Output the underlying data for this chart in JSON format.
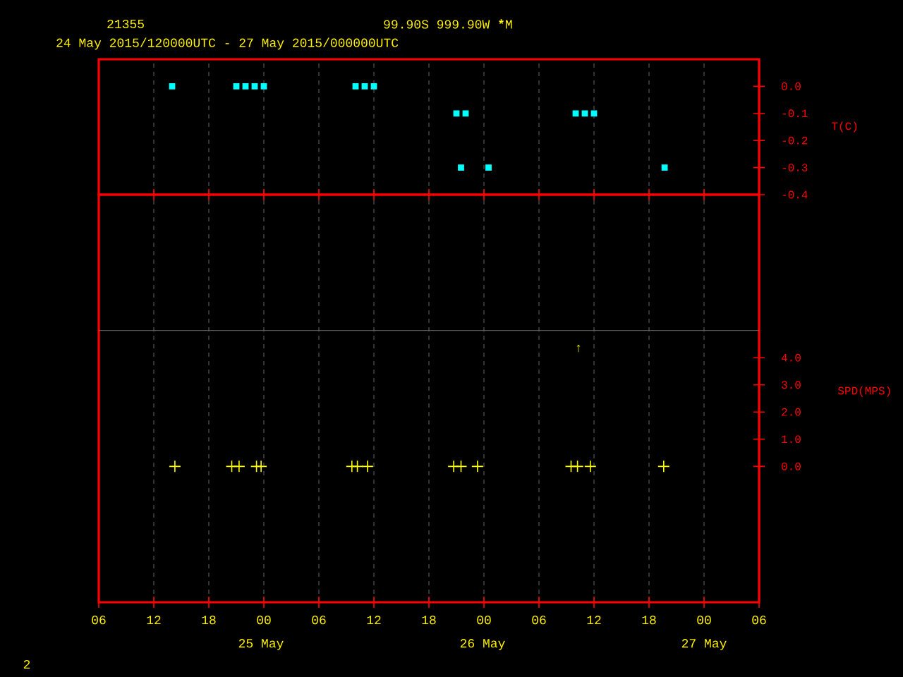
{
  "chart_data": [
    {
      "type": "scatter",
      "title": "21355",
      "subtitle": "24 May 2015/120000UTC - 27 May 2015/000000UTC",
      "annotations": [
        "99.90S  999.90W *****M"
      ],
      "ylabel": "T(C)",
      "marker": "square",
      "grid": "x",
      "tick_labels": "y",
      "xlim": [
        6,
        78
      ],
      "xticks": [
        6,
        12,
        18,
        24,
        30,
        36,
        42,
        48,
        54,
        60,
        66,
        72,
        78
      ],
      "ylim": [
        -0.4,
        0.1
      ],
      "yticks": [
        {
          "value": 0,
          "label": "0.0"
        },
        {
          "value": -0.1,
          "label": "-0.1"
        },
        {
          "value": -0.2,
          "label": "-0.2"
        },
        {
          "value": -0.3,
          "label": "-0.3"
        },
        {
          "value": -0.4,
          "label": "-0.4"
        }
      ],
      "series": [
        {
          "color": "#00ffff",
          "x": [
            14,
            21,
            22,
            23,
            24,
            34,
            35,
            36,
            45,
            46,
            58,
            59,
            60,
            45.5,
            48.5,
            67.7
          ],
          "values": [
            0,
            0,
            0,
            0,
            0,
            0,
            0,
            0,
            -0.1,
            -0.1,
            -0.1,
            -0.1,
            -0.1,
            -0.3,
            -0.3,
            -0.3
          ]
        }
      ]
    },
    {
      "type": "scatter",
      "ylabel": "SPD(MPS)",
      "marker": "cross",
      "grid": "x",
      "annotations": [
        "25 May",
        "26 May",
        "27 May",
        "↑",
        "2"
      ],
      "xlim": [
        6,
        78
      ],
      "xticks": [
        {
          "value": 6,
          "label": "06"
        },
        {
          "value": 12,
          "label": "12"
        },
        {
          "value": 18,
          "label": "18"
        },
        {
          "value": 24,
          "label": "00"
        },
        {
          "value": 30,
          "label": "06"
        },
        {
          "value": 36,
          "label": "12"
        },
        {
          "value": 42,
          "label": "18"
        },
        {
          "value": 48,
          "label": "00"
        },
        {
          "value": 54,
          "label": "06"
        },
        {
          "value": 60,
          "label": "12"
        },
        {
          "value": 66,
          "label": "18"
        },
        {
          "value": 72,
          "label": "00"
        },
        {
          "value": 78,
          "label": "06"
        }
      ],
      "ylim": [
        -5,
        10
      ],
      "yticks": [
        {
          "value": 0,
          "label": "0.0"
        },
        {
          "value": 1,
          "label": "1.0"
        },
        {
          "value": 2,
          "label": "2.0"
        },
        {
          "value": 3,
          "label": "3.0"
        },
        {
          "value": 4,
          "label": "4.0"
        }
      ],
      "ref_lines": [
        {
          "axis": "y",
          "value": 5,
          "color": "#808080"
        }
      ],
      "series": [
        {
          "color": "#ffff00",
          "x": [
            14.3,
            20.5,
            21.3,
            23.2,
            23.7,
            33.6,
            34.2,
            35.3,
            44.7,
            45.5,
            47.3,
            57.5,
            58.2,
            59.6,
            67.6
          ],
          "values": [
            0,
            0,
            0,
            0,
            0,
            0,
            0,
            0,
            0,
            0,
            0,
            0,
            0,
            0,
            0
          ]
        }
      ]
    }
  ]
}
